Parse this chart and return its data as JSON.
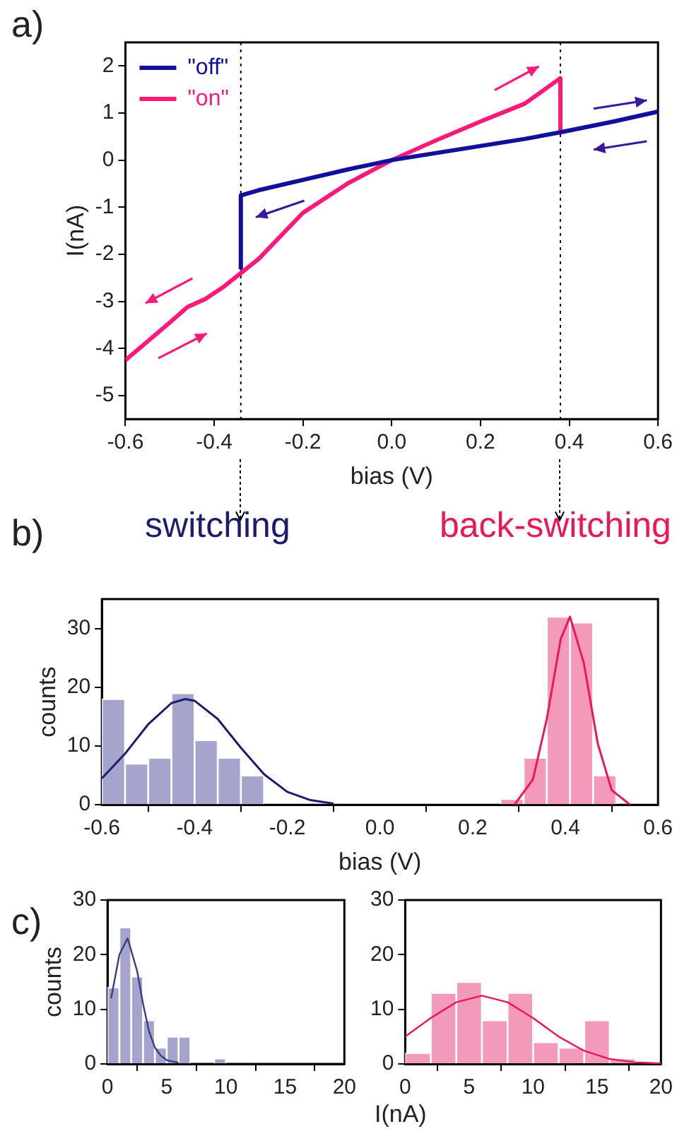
{
  "chart_data": [
    {
      "type": "line",
      "annotations": [
        "a)"
      ],
      "xlabel": "bias (V)",
      "ylabel": "I(nA)",
      "xlim": [
        -0.6,
        0.6
      ],
      "xticks": [
        -0.6,
        -0.4,
        -0.2,
        {
          "value": 0,
          "label": "0.0"
        },
        0.2,
        0.4,
        0.6
      ],
      "ylim": [
        -5.5,
        2.5
      ],
      "yticks": [
        -5,
        -4,
        -3,
        -2,
        -1,
        0,
        1,
        2
      ],
      "grid": false,
      "legend": "top left",
      "marker": "none",
      "series": [
        {
          "name": "\"off\"",
          "color": "#10109a",
          "x": [
            -0.34,
            -0.34,
            -0.3,
            -0.2,
            -0.1,
            0,
            0.1,
            0.2,
            0.3,
            0.38,
            0.5,
            0.6
          ],
          "values": [
            -2.32,
            -0.75,
            -0.64,
            -0.42,
            -0.2,
            0,
            0.15,
            0.3,
            0.45,
            0.59,
            0.82,
            1.03
          ]
        },
        {
          "name": "\"on\"",
          "color": "#ff1a7a",
          "x": [
            -0.6,
            -0.55,
            -0.5,
            -0.46,
            -0.42,
            -0.38,
            -0.34,
            -0.3,
            -0.2,
            -0.1,
            0,
            0.1,
            0.2,
            0.3,
            0.38,
            0.38
          ],
          "values": [
            -4.25,
            -3.85,
            -3.45,
            -3.12,
            -2.95,
            -2.7,
            -2.4,
            -2.1,
            -1.12,
            -0.5,
            0,
            0.42,
            0.82,
            1.2,
            1.74,
            0.59
          ]
        }
      ],
      "ref_lines": [
        {
          "axis": "x",
          "value": -0.34,
          "line_style": "dotted",
          "color": "#000000"
        },
        {
          "axis": "x",
          "value": 0.38,
          "line_style": "dotted",
          "color": "#000000"
        }
      ]
    },
    {
      "type": "histogram",
      "annotations": [
        "b)"
      ],
      "xlabel": "bias (V)",
      "ylabel": "counts",
      "xlim": [
        -0.6,
        0.6
      ],
      "xticks": [
        -0.6,
        -0.4,
        -0.2,
        {
          "value": 0,
          "label": "0.0"
        },
        0.2,
        0.4,
        0.6
      ],
      "ylim": [
        0,
        35
      ],
      "yticks": [
        0,
        10,
        20,
        30
      ],
      "grid": false,
      "marker": "none",
      "series": [
        {
          "color": "#a4a4cc",
          "bins": [
            -0.6,
            -0.55,
            -0.5,
            -0.45,
            -0.4,
            -0.35,
            -0.3,
            -0.25
          ],
          "values": [
            18,
            7,
            8,
            19,
            11,
            8,
            5
          ]
        },
        {
          "color": "#f39abb",
          "bins": [
            0.26,
            0.31,
            0.36,
            0.41,
            0.46,
            0.51
          ],
          "values": [
            1,
            8,
            32,
            31,
            5
          ]
        },
        {
          "type": "line",
          "name": "switching",
          "color": "#1c1c6c",
          "x": [
            -0.6,
            -0.55,
            -0.5,
            -0.45,
            -0.42,
            -0.4,
            -0.35,
            -0.3,
            -0.25,
            -0.2,
            -0.15,
            -0.1
          ],
          "values": [
            4.5,
            8.7,
            13.7,
            17.3,
            18,
            17.7,
            14.6,
            9.7,
            5.2,
            2.2,
            0.8,
            0.2
          ]
        },
        {
          "type": "line",
          "name": "back-switching",
          "color": "#e8185a",
          "x": [
            0.29,
            0.33,
            0.36,
            0.39,
            0.41,
            0.44,
            0.47,
            0.5,
            0.54
          ],
          "values": [
            0,
            4.3,
            14.6,
            28.2,
            32,
            24.1,
            10.4,
            2.5,
            0
          ]
        }
      ]
    },
    {
      "type": "histogram",
      "annotations": [
        "c)"
      ],
      "ylabel": "counts",
      "xlim": [
        0,
        20
      ],
      "xticks": [
        0,
        5,
        10,
        15,
        20
      ],
      "ylim": [
        0,
        30
      ],
      "yticks": [
        0,
        10,
        20,
        30
      ],
      "grid": false,
      "marker": "none",
      "series": [
        {
          "color": "#a4a4cc",
          "bins": [
            0,
            1,
            2,
            3,
            4,
            5,
            6,
            7,
            8,
            9,
            10
          ],
          "values": [
            14,
            25,
            16,
            8,
            3,
            5,
            5,
            0,
            0,
            1
          ]
        },
        {
          "type": "line",
          "color": "#3c3c80",
          "x": [
            0.3,
            1,
            1.7,
            2.5,
            3,
            3.5,
            4,
            4.5,
            5,
            6
          ],
          "values": [
            12,
            20,
            23,
            17,
            11,
            6,
            3,
            1.5,
            0.7,
            0.2
          ]
        }
      ]
    },
    {
      "type": "histogram",
      "xlabel": "I(nA)",
      "xlim": [
        0,
        20
      ],
      "xticks": [
        0,
        5,
        10,
        15,
        20
      ],
      "ylim": [
        0,
        30
      ],
      "yticks": [
        0,
        10,
        20,
        30
      ],
      "grid": false,
      "marker": "none",
      "series": [
        {
          "color": "#f39abb",
          "bins": [
            0,
            2,
            4,
            6,
            8,
            10,
            12,
            14,
            16,
            18,
            20
          ],
          "values": [
            2,
            13,
            15,
            8,
            13,
            4,
            3,
            8,
            1,
            0
          ]
        },
        {
          "type": "line",
          "color": "#e8185a",
          "x": [
            0,
            2,
            4,
            6,
            8,
            10,
            12,
            14,
            16,
            18,
            20
          ],
          "values": [
            5,
            8.4,
            11.3,
            12.5,
            11.3,
            8.4,
            5,
            2.4,
            0.9,
            0.3,
            0.1
          ]
        }
      ]
    }
  ]
}
